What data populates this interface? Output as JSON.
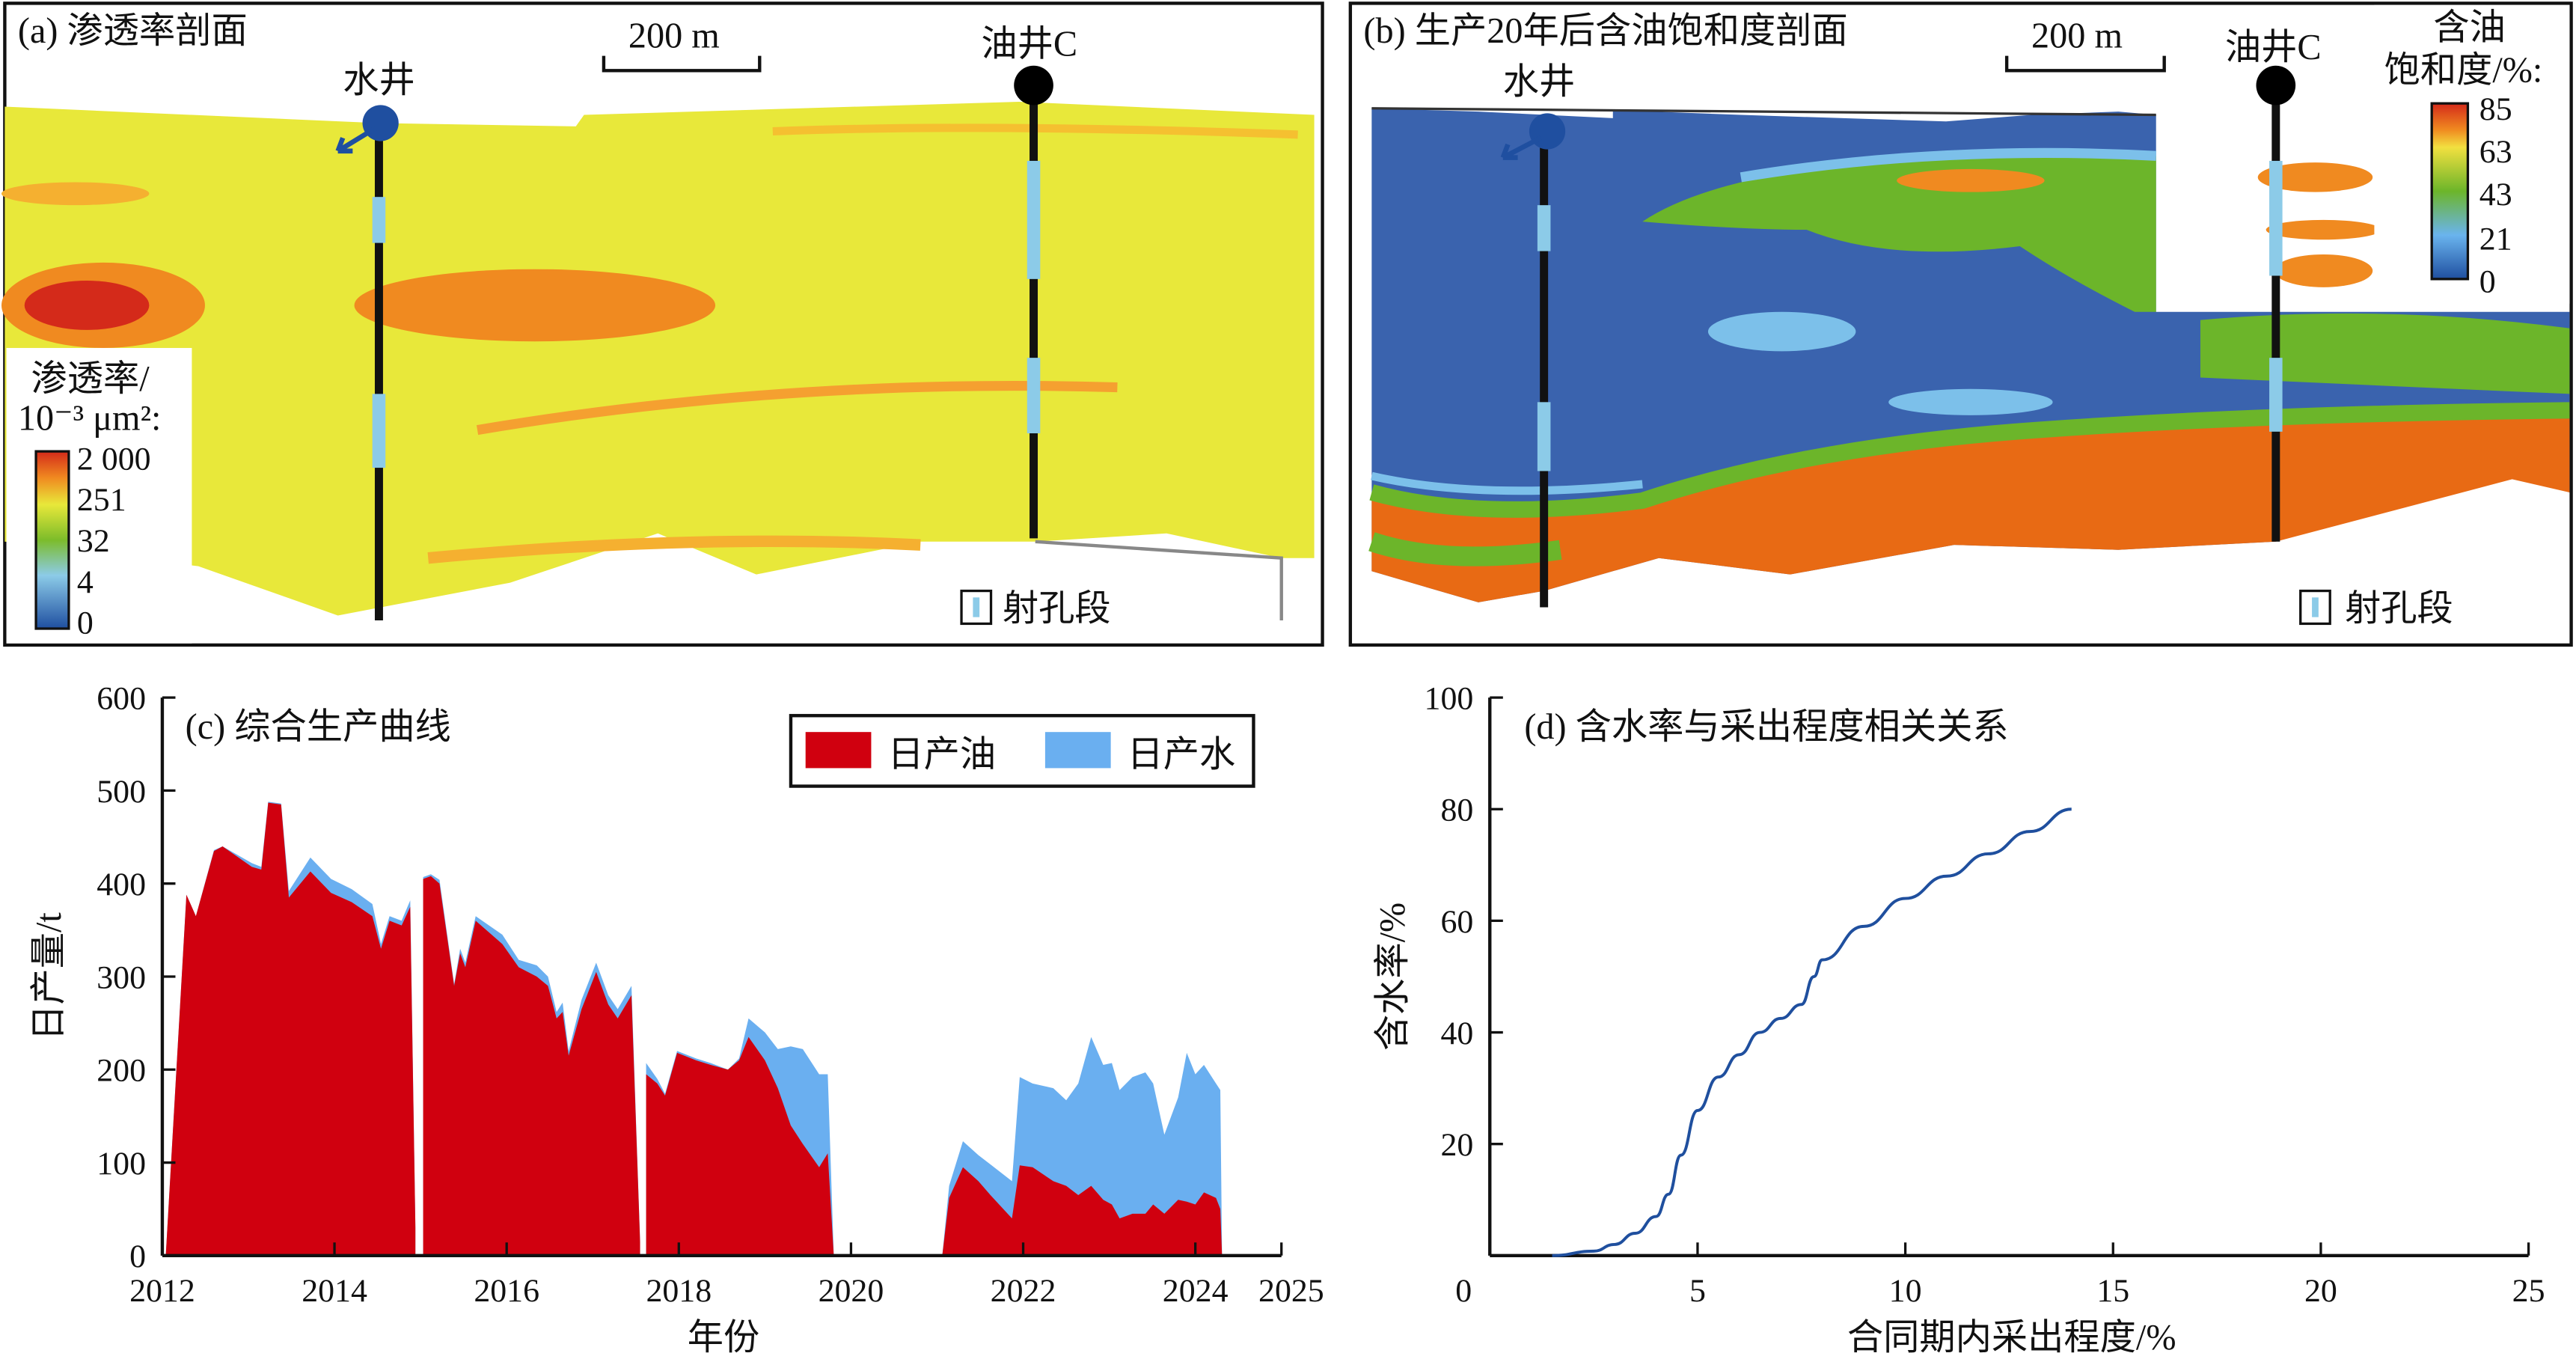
{
  "panel_a": {
    "title": "(a) 渗透率剖面",
    "scale_label": "200 m",
    "water_well": "水井",
    "oil_well": "油井C",
    "legend_title_1": "渗透率/",
    "legend_title_2": "10⁻³ μm²:",
    "legend_ticks": [
      "2 000",
      "251",
      "32",
      "4",
      "0"
    ],
    "perforation_legend": "射孔段"
  },
  "panel_b": {
    "title": "(b) 生产20年后含油饱和度剖面",
    "scale_label": "200 m",
    "water_well": "水井",
    "oil_well": "油井C",
    "legend_title_1": "含油",
    "legend_title_2": "饱和度/%:",
    "legend_ticks": [
      "85",
      "63",
      "43",
      "21",
      "0"
    ],
    "perforation_legend": "射孔段"
  },
  "colors": {
    "oil": "#d0000f",
    "water": "#6aaff0",
    "curve": "#1f4f9e"
  },
  "chart_data": [
    {
      "type": "area",
      "title": "(c) 综合生产曲线",
      "xlabel": "年份",
      "ylabel": "日产量/t",
      "xlim": [
        2012,
        2025
      ],
      "ylim": [
        0,
        600
      ],
      "xticks": [
        "2012",
        "2014",
        "2016",
        "2018",
        "2020",
        "2022",
        "2024",
        "2025"
      ],
      "xtick_values": [
        2012,
        2014,
        2016,
        2018,
        2020,
        2022,
        2024,
        2025
      ],
      "yticks": [
        "0",
        "100",
        "200",
        "300",
        "400",
        "500",
        "600"
      ],
      "legend": [
        "日产油",
        "日产水"
      ],
      "legend_position": "top-right",
      "series_note": "each point: [year, daily_oil_t, daily_oil_plus_water_t]",
      "segments": [
        [
          [
            2012.04,
            0,
            0
          ],
          [
            2012.28,
            388,
            388
          ],
          [
            2012.39,
            365,
            365
          ],
          [
            2012.6,
            435,
            436
          ],
          [
            2012.7,
            440,
            440
          ],
          [
            2013.04,
            418,
            422
          ],
          [
            2013.15,
            415,
            418
          ],
          [
            2013.23,
            487,
            488
          ],
          [
            2013.38,
            485,
            486
          ],
          [
            2013.47,
            385,
            392
          ],
          [
            2013.72,
            413,
            428
          ],
          [
            2013.96,
            390,
            405
          ],
          [
            2014.2,
            380,
            394
          ],
          [
            2014.44,
            365,
            378
          ],
          [
            2014.54,
            330,
            335
          ],
          [
            2014.64,
            360,
            365
          ],
          [
            2014.78,
            355,
            360
          ],
          [
            2014.88,
            375,
            382
          ],
          [
            2014.94,
            30,
            30
          ]
        ],
        [
          [
            2015.03,
            405,
            407
          ],
          [
            2015.12,
            408,
            410
          ],
          [
            2015.22,
            400,
            404
          ],
          [
            2015.39,
            290,
            292
          ],
          [
            2015.46,
            325,
            330
          ],
          [
            2015.52,
            310,
            315
          ],
          [
            2015.64,
            360,
            365
          ],
          [
            2015.95,
            335,
            345
          ],
          [
            2016.14,
            310,
            318
          ],
          [
            2016.35,
            300,
            312
          ],
          [
            2016.48,
            290,
            300
          ],
          [
            2016.58,
            255,
            262
          ],
          [
            2016.65,
            262,
            272
          ],
          [
            2016.72,
            215,
            220
          ],
          [
            2016.87,
            265,
            275
          ],
          [
            2017.04,
            305,
            315
          ],
          [
            2017.18,
            270,
            280
          ],
          [
            2017.29,
            255,
            265
          ],
          [
            2017.45,
            280,
            290
          ],
          [
            2017.55,
            15,
            15
          ]
        ],
        [
          [
            2017.62,
            195,
            207
          ],
          [
            2017.75,
            185,
            190
          ],
          [
            2017.84,
            172,
            174
          ],
          [
            2017.98,
            218,
            220
          ],
          [
            2018.2,
            210,
            212
          ],
          [
            2018.37,
            205,
            207
          ],
          [
            2018.57,
            200,
            200
          ],
          [
            2018.7,
            210,
            212
          ],
          [
            2018.81,
            235,
            255
          ],
          [
            2019.0,
            210,
            240
          ],
          [
            2019.15,
            180,
            222
          ],
          [
            2019.3,
            140,
            225
          ],
          [
            2019.44,
            120,
            222
          ],
          [
            2019.63,
            95,
            195
          ],
          [
            2019.73,
            110,
            195
          ],
          [
            2019.8,
            0,
            0
          ]
        ],
        [
          [
            2021.06,
            0,
            0
          ],
          [
            2021.14,
            62,
            75
          ],
          [
            2021.3,
            95,
            123
          ],
          [
            2021.48,
            80,
            108
          ],
          [
            2021.62,
            65,
            98
          ],
          [
            2021.87,
            40,
            80
          ],
          [
            2021.96,
            97,
            192
          ],
          [
            2022.11,
            95,
            185
          ],
          [
            2022.35,
            80,
            180
          ],
          [
            2022.5,
            75,
            167
          ],
          [
            2022.64,
            65,
            185
          ],
          [
            2022.79,
            75,
            235
          ],
          [
            2022.93,
            60,
            205
          ],
          [
            2023.03,
            55,
            207
          ],
          [
            2023.12,
            40,
            178
          ],
          [
            2023.27,
            45,
            192
          ],
          [
            2023.42,
            45,
            197
          ],
          [
            2023.51,
            55,
            185
          ],
          [
            2023.64,
            45,
            130
          ],
          [
            2023.8,
            60,
            170
          ],
          [
            2023.9,
            58,
            218
          ],
          [
            2024.0,
            55,
            195
          ],
          [
            2024.1,
            68,
            205
          ],
          [
            2024.24,
            62,
            185
          ],
          [
            2024.29,
            50,
            178
          ],
          [
            2024.31,
            0,
            0
          ]
        ]
      ]
    },
    {
      "type": "line",
      "title": "(d) 含水率与采出程度相关关系",
      "xlabel": "合同期内采出程度/%",
      "ylabel": "含水率/%",
      "xlim": [
        0,
        25
      ],
      "ylim": [
        0,
        100
      ],
      "xticks": [
        "0",
        "5",
        "10",
        "15",
        "20",
        "25"
      ],
      "yticks": [
        "20",
        "40",
        "60",
        "80",
        "100"
      ],
      "x": [
        1.5,
        2.5,
        3.0,
        3.5,
        4.0,
        4.3,
        4.6,
        5.0,
        5.5,
        6.0,
        6.5,
        7.0,
        7.5,
        7.8,
        8.0,
        9.0,
        10.0,
        11.0,
        12.0,
        13.0,
        14.0
      ],
      "y": [
        0,
        0.8,
        2,
        4,
        7,
        11,
        18,
        26,
        32,
        36,
        40,
        42.5,
        45,
        50,
        53,
        59,
        64,
        68,
        72,
        76,
        80
      ]
    }
  ]
}
